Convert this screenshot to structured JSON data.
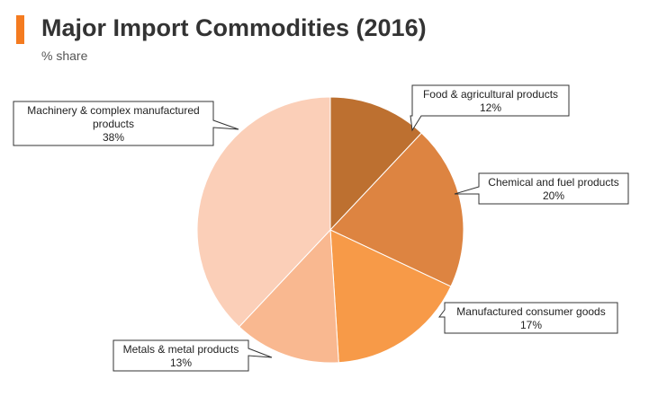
{
  "header": {
    "title": "Major Import Commodities (2016)",
    "subtitle": "% share",
    "accent_color": "#f47b20"
  },
  "chart_data": {
    "type": "pie",
    "title": "Major Import Commodities (2016)",
    "subtitle": "% share",
    "start_angle_deg": 0,
    "direction": "clockwise",
    "slices": [
      {
        "label": "Food & agricultural products",
        "value": 12,
        "value_label": "12%",
        "color": "#bd7030",
        "label_lines": [
          "Food & agricultural products",
          "12%"
        ]
      },
      {
        "label": "Chemical and fuel products",
        "value": 20,
        "value_label": "20%",
        "color": "#dd8441",
        "label_lines": [
          "Chemical and fuel products",
          "20%"
        ]
      },
      {
        "label": "Manufactured consumer goods",
        "value": 17,
        "value_label": "17%",
        "color": "#f79a48",
        "label_lines": [
          "Manufactured consumer goods",
          "17%"
        ]
      },
      {
        "label": "Metals & metal products",
        "value": 13,
        "value_label": "13%",
        "color": "#f9b890",
        "label_lines": [
          "Metals & metal products",
          "13%"
        ]
      },
      {
        "label": "Machinery & complex manufactured products",
        "value": 38,
        "value_label": "38%",
        "color": "#fbcfb8",
        "label_lines": [
          "Machinery & complex manufactured",
          "products",
          "38%"
        ]
      }
    ]
  }
}
